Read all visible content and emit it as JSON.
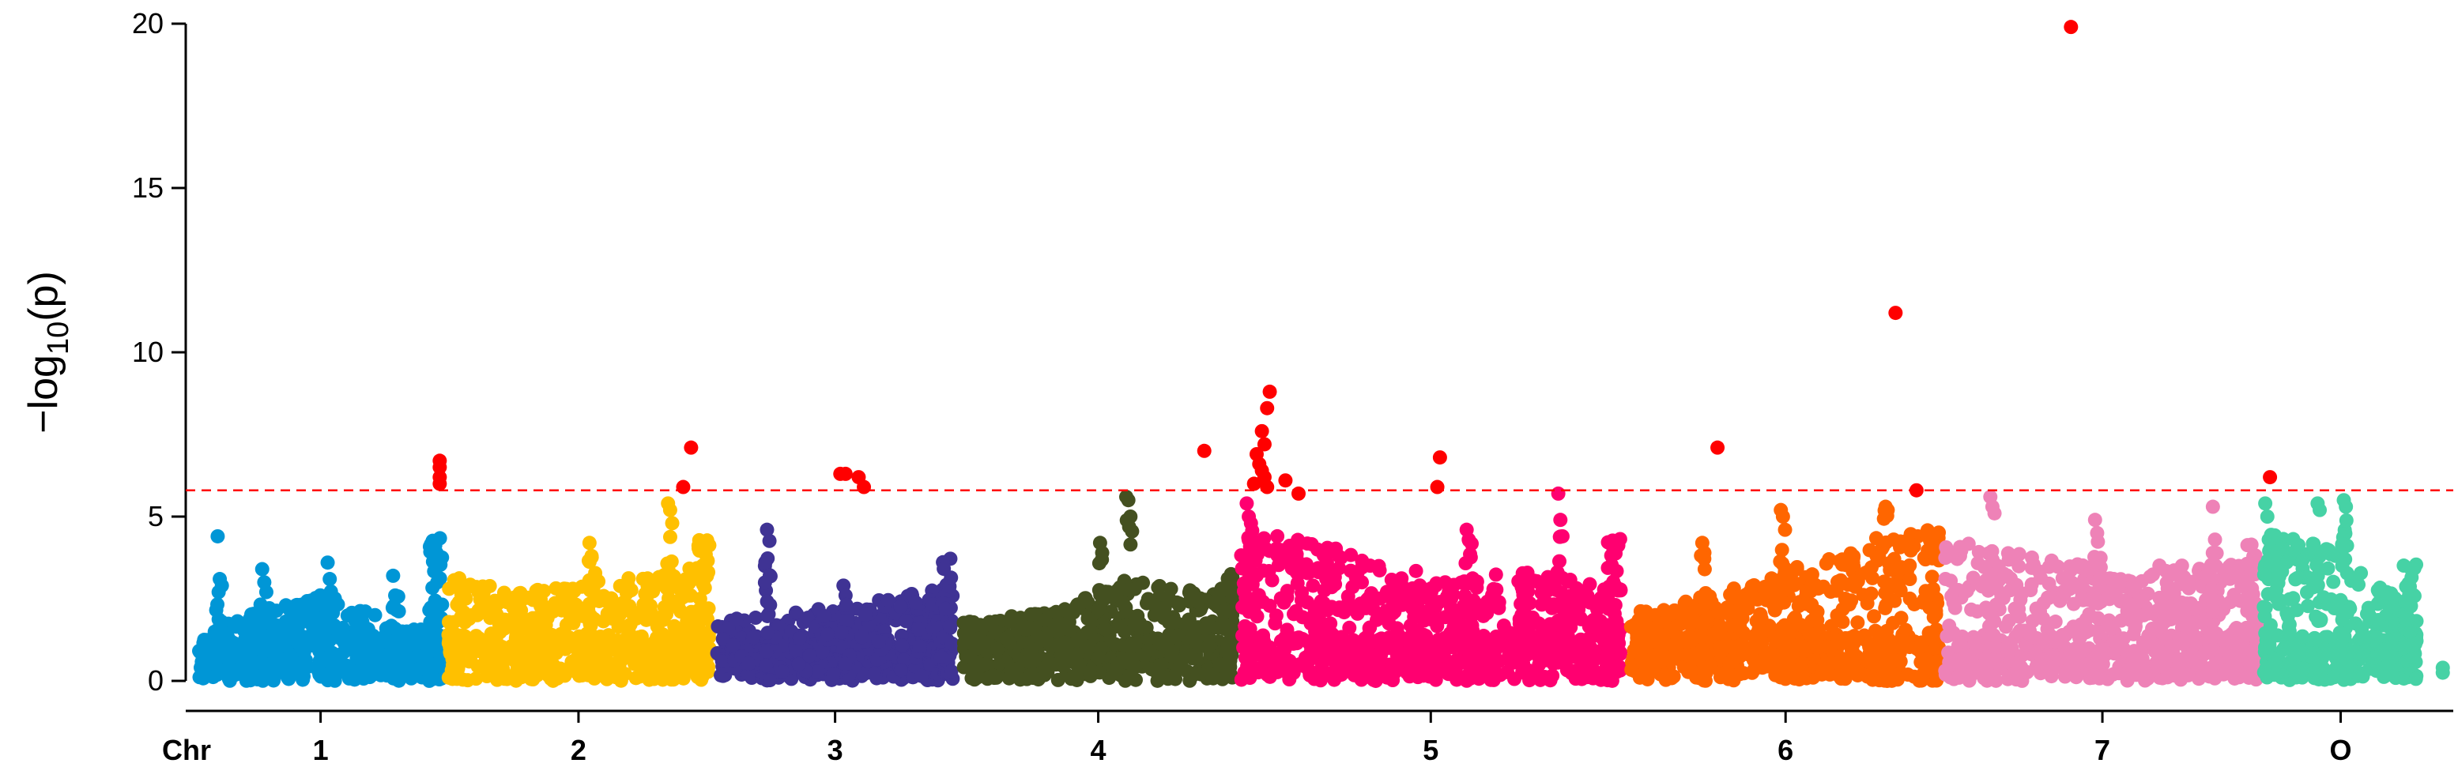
{
  "chart_data": {
    "type": "scatter",
    "subtype": "manhattan",
    "title": "",
    "ylabel_parts": {
      "prefix": "−log",
      "subscript": "10",
      "suffix": "(p)"
    },
    "xlabel": "Chr",
    "ylim": [
      0,
      20
    ],
    "yticks": [
      0,
      5,
      10,
      15,
      20
    ],
    "grid": false,
    "legend": "none",
    "threshold": {
      "value": 5.8,
      "color": "#ff0000",
      "style": "dashed"
    },
    "significant_color": "#ff0000",
    "x_unit": "relative genomic position (chromosome index)",
    "chromosomes": [
      {
        "label": "1",
        "start": 0.05,
        "end": 0.98,
        "color": "#0096d6",
        "profile": [
          [
            0.05,
            1.4
          ],
          [
            0.3,
            2.2
          ],
          [
            0.55,
            2.7
          ],
          [
            0.8,
            1.7
          ],
          [
            0.95,
            1.5
          ]
        ],
        "tail": 4.4,
        "peaks": [
          {
            "x": 0.13,
            "values": [
              4.4,
              3.1,
              2.9
            ]
          },
          {
            "x": 0.3,
            "values": [
              3.4,
              3.0
            ]
          },
          {
            "x": 0.55,
            "values": [
              3.6,
              3.1
            ]
          },
          {
            "x": 0.8,
            "values": [
              3.2,
              2.6
            ]
          }
        ]
      },
      {
        "label": "2",
        "start": 1.0,
        "end": 2.0,
        "color": "#ffc000",
        "profile": [
          [
            1.0,
            3.2
          ],
          [
            1.3,
            2.7
          ],
          [
            1.55,
            3.1
          ],
          [
            1.8,
            3.2
          ],
          [
            2.0,
            3.6
          ]
        ],
        "tail": 4.4,
        "peaks": [
          {
            "x": 1.55,
            "values": [
              4.2,
              3.8
            ]
          },
          {
            "x": 1.85,
            "values": [
              5.4,
              5.2,
              4.8
            ]
          }
        ]
      },
      {
        "label": "3",
        "start": 2.03,
        "end": 2.93,
        "color": "#3f3394",
        "profile": [
          [
            2.03,
            1.9
          ],
          [
            2.3,
            2.1
          ],
          [
            2.6,
            2.4
          ],
          [
            2.93,
            2.9
          ]
        ],
        "tail": 3.8,
        "peaks": [
          {
            "x": 2.22,
            "values": [
              3.5,
              4.6
            ]
          },
          {
            "x": 2.52,
            "values": [
              2.9,
              2.6
            ]
          }
        ]
      },
      {
        "label": "4",
        "start": 2.97,
        "end": 4.0,
        "color": "#445020",
        "profile": [
          [
            2.97,
            1.8
          ],
          [
            3.3,
            2.1
          ],
          [
            3.6,
            3.1
          ],
          [
            4.0,
            2.6
          ]
        ],
        "tail": 3.5,
        "peaks": [
          {
            "x": 3.5,
            "values": [
              4.2,
              3.9
            ]
          },
          {
            "x": 3.6,
            "values": [
              5.6,
              5.5,
              5.0
            ]
          }
        ]
      },
      {
        "label": "5",
        "start": 4.03,
        "end": 5.48,
        "color": "#ff0070",
        "profile": [
          [
            4.03,
            4.6
          ],
          [
            4.3,
            4.3
          ],
          [
            4.55,
            3.6
          ],
          [
            4.8,
            3.2
          ],
          [
            5.1,
            3.4
          ],
          [
            5.48,
            3.1
          ]
        ],
        "tail": 4.5,
        "peaks": [
          {
            "x": 4.06,
            "values": [
              5.4,
              5.0
            ]
          },
          {
            "x": 4.9,
            "values": [
              4.6,
              4.3
            ]
          },
          {
            "x": 5.25,
            "values": [
              5.7,
              4.9,
              4.4
            ]
          }
        ]
      },
      {
        "label": "6",
        "start": 5.52,
        "end": 6.7,
        "color": "#ff6600",
        "profile": [
          [
            5.52,
            2.1
          ],
          [
            5.9,
            2.8
          ],
          [
            6.2,
            3.6
          ],
          [
            6.5,
            4.5
          ],
          [
            6.7,
            4.7
          ]
        ],
        "tail": 4.6,
        "peaks": [
          {
            "x": 5.8,
            "values": [
              4.2,
              3.9
            ]
          },
          {
            "x": 6.1,
            "values": [
              5.2,
              5.0,
              4.6
            ]
          },
          {
            "x": 6.5,
            "values": [
              5.3,
              5.2
            ]
          }
        ]
      },
      {
        "label": "7",
        "start": 6.72,
        "end": 7.92,
        "color": "#ee82b7",
        "profile": [
          [
            6.72,
            4.4
          ],
          [
            7.1,
            3.7
          ],
          [
            7.5,
            3.5
          ],
          [
            7.92,
            3.6
          ]
        ],
        "tail": 4.4,
        "peaks": [
          {
            "x": 6.9,
            "values": [
              5.6,
              5.3,
              5.1
            ]
          },
          {
            "x": 7.3,
            "values": [
              4.9,
              4.5
            ]
          },
          {
            "x": 7.75,
            "values": [
              5.3,
              4.3
            ]
          }
        ]
      },
      {
        "label": "O",
        "start": 7.94,
        "end": 8.52,
        "color": "#46d2a5",
        "profile": [
          [
            7.94,
            4.6
          ],
          [
            8.2,
            4.0
          ],
          [
            8.4,
            2.9
          ],
          [
            8.52,
            1.9
          ]
        ],
        "tail": 3.6,
        "peaks": [
          {
            "x": 7.95,
            "values": [
              5.4,
              5.0
            ]
          },
          {
            "x": 8.15,
            "values": [
              5.4,
              5.2
            ]
          },
          {
            "x": 8.25,
            "values": [
              5.5,
              5.3
            ]
          }
        ]
      }
    ],
    "significant_points": [
      {
        "chr": "1",
        "x": 0.97,
        "y": 6.7
      },
      {
        "chr": "1",
        "x": 0.97,
        "y": 6.5
      },
      {
        "chr": "1",
        "x": 0.97,
        "y": 6.2
      },
      {
        "chr": "1",
        "x": 0.97,
        "y": 6.0
      },
      {
        "chr": "2",
        "x": 1.93,
        "y": 7.1
      },
      {
        "chr": "2",
        "x": 1.9,
        "y": 5.9
      },
      {
        "chr": "3",
        "x": 2.5,
        "y": 6.3
      },
      {
        "chr": "3",
        "x": 2.52,
        "y": 6.3
      },
      {
        "chr": "3",
        "x": 2.57,
        "y": 6.2
      },
      {
        "chr": "3",
        "x": 2.59,
        "y": 5.9
      },
      {
        "chr": "4",
        "x": 3.89,
        "y": 7.0
      },
      {
        "chr": "5",
        "x": 4.14,
        "y": 8.8
      },
      {
        "chr": "5",
        "x": 4.13,
        "y": 8.3
      },
      {
        "chr": "5",
        "x": 4.11,
        "y": 7.6
      },
      {
        "chr": "5",
        "x": 4.12,
        "y": 7.2
      },
      {
        "chr": "5",
        "x": 4.09,
        "y": 6.9
      },
      {
        "chr": "5",
        "x": 4.1,
        "y": 6.6
      },
      {
        "chr": "5",
        "x": 4.11,
        "y": 6.4
      },
      {
        "chr": "5",
        "x": 4.12,
        "y": 6.2
      },
      {
        "chr": "5",
        "x": 4.08,
        "y": 6.0
      },
      {
        "chr": "5",
        "x": 4.13,
        "y": 5.9
      },
      {
        "chr": "5",
        "x": 4.2,
        "y": 6.1
      },
      {
        "chr": "5",
        "x": 4.25,
        "y": 5.7
      },
      {
        "chr": "5",
        "x": 4.79,
        "y": 6.8
      },
      {
        "chr": "5",
        "x": 4.78,
        "y": 5.9
      },
      {
        "chr": "6",
        "x": 5.85,
        "y": 7.1
      },
      {
        "chr": "6",
        "x": 6.53,
        "y": 11.2
      },
      {
        "chr": "6",
        "x": 6.61,
        "y": 5.8
      },
      {
        "chr": "7",
        "x": 7.2,
        "y": 19.9
      },
      {
        "chr": "O",
        "x": 7.96,
        "y": 6.2
      }
    ],
    "stray_points": [
      {
        "x": 8.62,
        "y": 0.4
      },
      {
        "x": 8.62,
        "y": 0.25
      }
    ]
  }
}
